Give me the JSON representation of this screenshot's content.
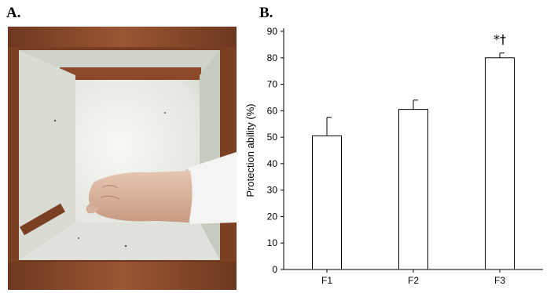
{
  "panels": {
    "a_label": "A.",
    "b_label": "B."
  },
  "photo": {
    "content": "hand inside a glass-walled wooden test box",
    "colors": {
      "wood": "#8b4a2b",
      "wood_dark": "#5e2d17",
      "glass": "#e9ece6",
      "skin": "#d9b5a0"
    }
  },
  "chart_data": {
    "type": "bar",
    "categories": [
      "F1",
      "F2",
      "F3"
    ],
    "values": [
      50.5,
      60.5,
      80
    ],
    "errors": [
      7,
      3.5,
      1.8
    ],
    "annotations": [
      "",
      "",
      "*†"
    ],
    "xlabel": "",
    "ylabel": "Protection ability (%)",
    "ylim": [
      0,
      90
    ],
    "yticks": [
      0,
      10,
      20,
      30,
      40,
      50,
      60,
      70,
      80,
      90
    ],
    "grid": false,
    "bar_fill": "#ffffff",
    "bar_stroke": "#000000"
  }
}
